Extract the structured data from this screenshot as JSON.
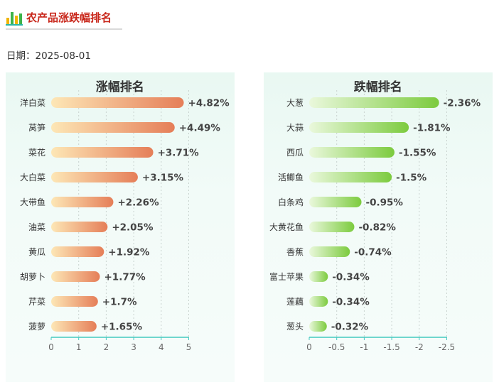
{
  "header": {
    "title": "农产品涨跌幅排名",
    "icon": "bar-chart-icon",
    "accent_color": "#c8261a"
  },
  "date_row": {
    "label": "日期：",
    "value": "2025-08-01"
  },
  "chart_data": [
    {
      "type": "bar",
      "orientation": "horizontal",
      "title": "涨幅排名",
      "categories": [
        "洋白菜",
        "莴笋",
        "菜花",
        "大白菜",
        "大带鱼",
        "油菜",
        "黄瓜",
        "胡萝卜",
        "芹菜",
        "菠萝"
      ],
      "values": [
        4.82,
        4.49,
        3.71,
        3.15,
        2.26,
        2.05,
        1.92,
        1.77,
        1.7,
        1.65
      ],
      "value_labels": [
        "+4.82%",
        "+4.49%",
        "+3.71%",
        "+3.15%",
        "+2.26%",
        "+2.05%",
        "+1.92%",
        "+1.77%",
        "+1.7%",
        "+1.65%"
      ],
      "xlim": [
        0,
        5
      ],
      "x_ticks": [
        "0",
        "1",
        "2",
        "3",
        "4",
        "5"
      ],
      "grid": true,
      "bar_gradient": [
        "#fde7b6",
        "#e57e58"
      ]
    },
    {
      "type": "bar",
      "orientation": "horizontal",
      "title": "跌幅排名",
      "categories": [
        "大葱",
        "大蒜",
        "西瓜",
        "活鲫鱼",
        "白条鸡",
        "大黄花鱼",
        "香蕉",
        "富士苹果",
        "莲藕",
        "葱头"
      ],
      "values": [
        -2.36,
        -1.81,
        -1.55,
        -1.5,
        -0.95,
        -0.82,
        -0.74,
        -0.34,
        -0.34,
        -0.32
      ],
      "value_labels": [
        "-2.36%",
        "-1.81%",
        "-1.55%",
        "-1.5%",
        "-0.95%",
        "-0.82%",
        "-0.74%",
        "-0.34%",
        "-0.34%",
        "-0.32%"
      ],
      "xlim": [
        0,
        -2.5
      ],
      "x_ticks": [
        "0",
        "-0.5",
        "-1",
        "-1.5",
        "-2",
        "-2.5"
      ],
      "grid": true,
      "bar_gradient": [
        "#eaf8dc",
        "#7ccb3e"
      ]
    }
  ]
}
